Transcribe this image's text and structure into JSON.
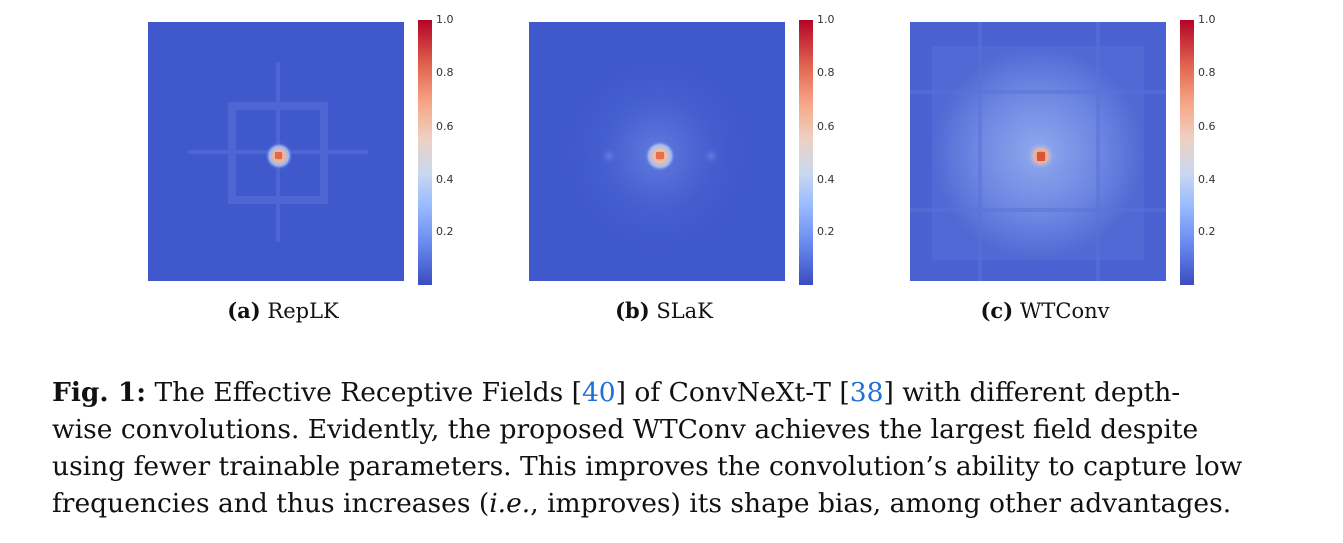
{
  "colorbar": {
    "ticks": [
      "1.0",
      "0.8",
      "0.6",
      "0.4",
      "0.2"
    ]
  },
  "panels": [
    {
      "letter": "(a)",
      "name": "RepLK"
    },
    {
      "letter": "(b)",
      "name": "SLaK"
    },
    {
      "letter": "(c)",
      "name": "WTConv"
    }
  ],
  "caption": {
    "label": "Fig. 1:",
    "l1a": " The Effective Receptive Fields [",
    "ref1": "40",
    "l1b": "] of ConvNeXt-T [",
    "ref2": "38",
    "l1c": "] with different depth-",
    "l2": "wise convolutions. Evidently, the proposed WTConv achieves the largest field despite",
    "l3": "using fewer trainable parameters. This improves the convolution’s ability to capture low",
    "l4a": "frequencies and thus increases (",
    "l4ie": "i.e.",
    "l4b": ", improves) its shape bias, among other advantages."
  },
  "colors": {
    "low": "#3b4cc0",
    "mid": "#dddddd",
    "high": "#b40426",
    "link": "#1f6fd6"
  }
}
